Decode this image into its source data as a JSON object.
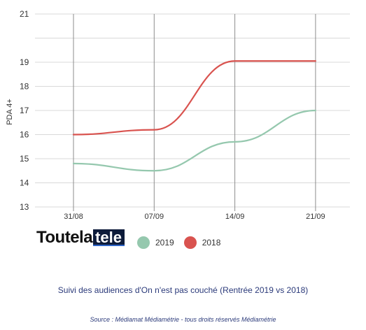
{
  "chart_data": {
    "type": "line",
    "categories": [
      "31/08",
      "07/09",
      "14/09",
      "21/09"
    ],
    "series": [
      {
        "name": "2019",
        "color": "#95c8ae",
        "values": [
          14.8,
          14.5,
          15.7,
          17.0
        ]
      },
      {
        "name": "2018",
        "color": "#d9534f",
        "values": [
          16.0,
          16.2,
          19.05,
          19.05
        ]
      }
    ],
    "ylabel": "PDA 4+",
    "ylim": [
      13,
      21
    ],
    "yticks": [
      13,
      14,
      15,
      16,
      17,
      18,
      19,
      20,
      21
    ],
    "ytick_labels": [
      "13",
      "14",
      "15",
      "16",
      "17",
      "18",
      "19",
      "",
      "21"
    ],
    "grid": true,
    "legend_position": "bottom-left"
  },
  "logo": {
    "text_part": "Toutela",
    "box_part": "tele"
  },
  "caption": "Suivi des audiences d'On n'est pas couché (Rentrée 2019 vs 2018)",
  "source": "Source : Médiamat Médiamétrie - tous droits réservés Médiamétrie"
}
